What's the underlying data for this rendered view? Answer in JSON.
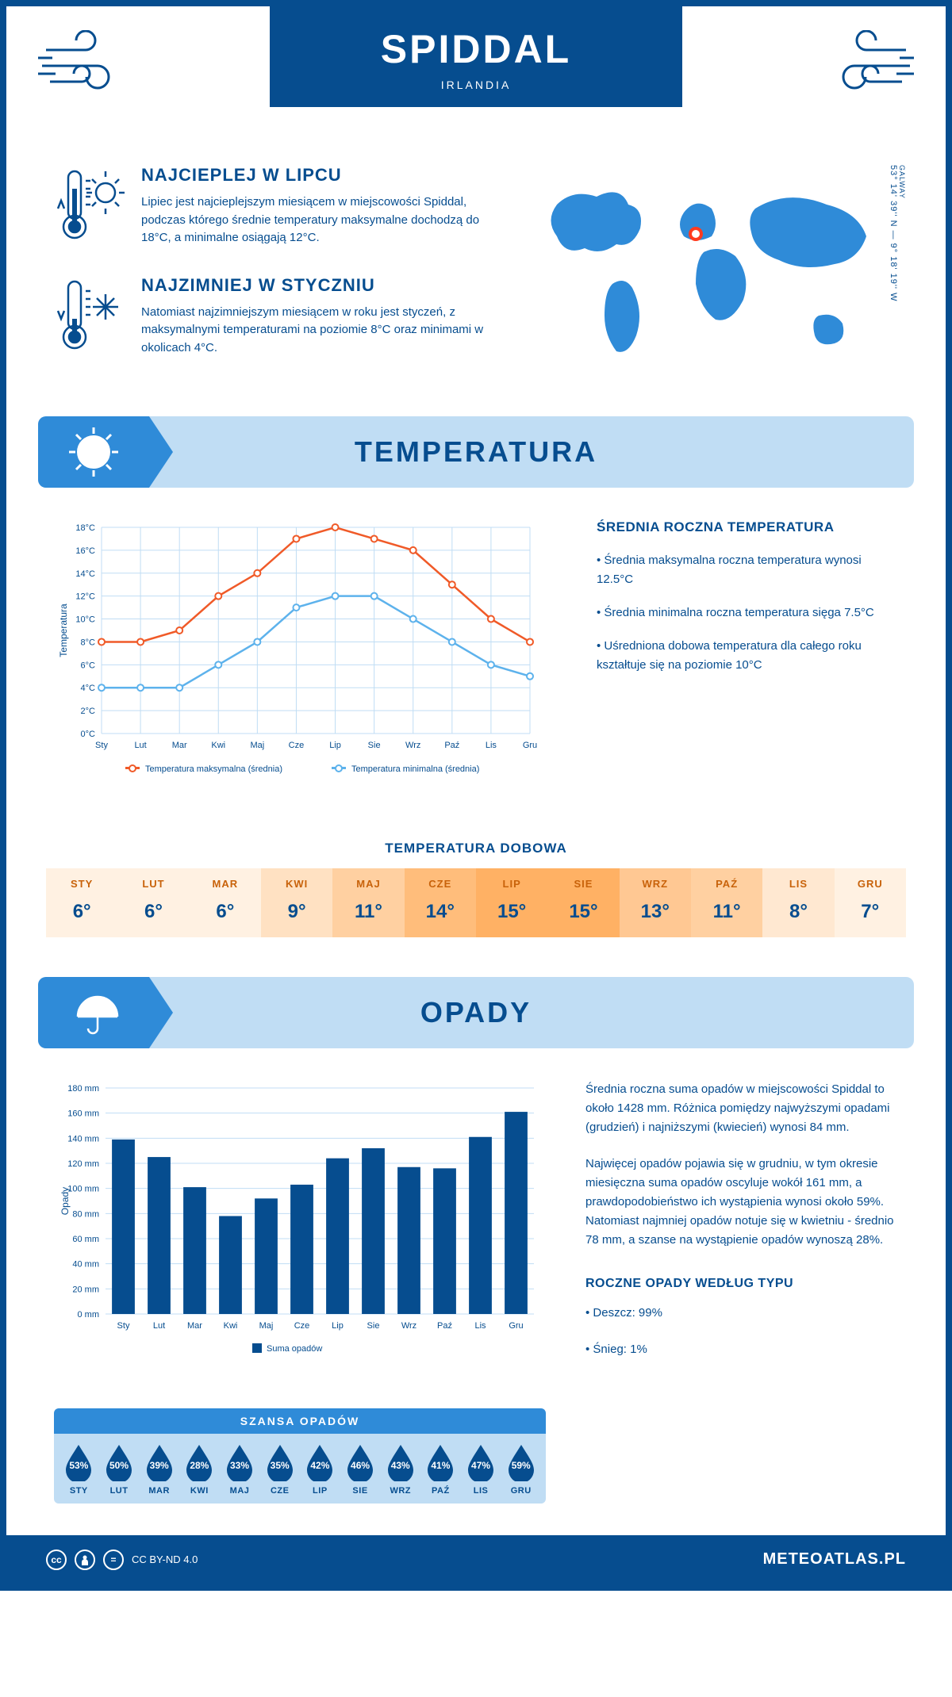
{
  "header": {
    "city": "SPIDDAL",
    "country": "IRLANDIA",
    "coords_line": "53° 14' 39'' N — 9° 18' 19'' W",
    "region": "GALWAY"
  },
  "map": {
    "marker_left_pct": 45,
    "marker_top_pct": 28
  },
  "intro": {
    "warm": {
      "title": "NAJCIEPLEJ W LIPCU",
      "text": "Lipiec jest najcieplejszym miesiącem w miejscowości Spiddal, podczas którego średnie temperatury maksymalne dochodzą do 18°C, a minimalne osiągają 12°C."
    },
    "cold": {
      "title": "NAJZIMNIEJ W STYCZNIU",
      "text": "Natomiast najzimniejszym miesiącem w roku jest styczeń, z maksymalnymi temperaturami na poziomie 8°C oraz minimami w okolicach 4°C."
    }
  },
  "sections": {
    "temperature_title": "TEMPERATURA",
    "precip_title": "OPADY"
  },
  "temp_chart": {
    "type": "line",
    "months": [
      "Sty",
      "Lut",
      "Mar",
      "Kwi",
      "Maj",
      "Cze",
      "Lip",
      "Sie",
      "Wrz",
      "Paź",
      "Lis",
      "Gru"
    ],
    "max_series": [
      8,
      8,
      9,
      12,
      14,
      17,
      18,
      17,
      16,
      13,
      10,
      8
    ],
    "min_series": [
      4,
      4,
      4,
      6,
      8,
      11,
      12,
      12,
      10,
      8,
      6,
      5
    ],
    "max_color": "#f05a28",
    "min_color": "#5db2ec",
    "grid_color": "#c0ddf4",
    "ylim": [
      0,
      18
    ],
    "ytick_step": 2,
    "ylabel": "Temperatura",
    "legend_max": "Temperatura maksymalna (średnia)",
    "legend_min": "Temperatura minimalna (średnia)"
  },
  "temp_side": {
    "title": "ŚREDNIA ROCZNA TEMPERATURA",
    "items": [
      "• Średnia maksymalna roczna temperatura wynosi 12.5°C",
      "• Średnia minimalna roczna temperatura sięga 7.5°C",
      "• Uśredniona dobowa temperatura dla całego roku kształtuje się na poziomie 10°C"
    ]
  },
  "daily": {
    "title": "TEMPERATURA DOBOWA",
    "months": [
      "STY",
      "LUT",
      "MAR",
      "KWI",
      "MAJ",
      "CZE",
      "LIP",
      "SIE",
      "WRZ",
      "PAŹ",
      "LIS",
      "GRU"
    ],
    "values": [
      "6°",
      "6°",
      "6°",
      "9°",
      "11°",
      "14°",
      "15°",
      "15°",
      "13°",
      "11°",
      "8°",
      "7°"
    ],
    "colors": [
      "#fff1e2",
      "#fff1e2",
      "#fff1e2",
      "#ffe1c2",
      "#ffd0a1",
      "#ffbd7b",
      "#ffb164",
      "#ffb164",
      "#ffc893",
      "#ffd0a1",
      "#ffe8d1",
      "#fff1e2"
    ]
  },
  "precip_chart": {
    "type": "bar",
    "months": [
      "Sty",
      "Lut",
      "Mar",
      "Kwi",
      "Maj",
      "Cze",
      "Lip",
      "Sie",
      "Wrz",
      "Paź",
      "Lis",
      "Gru"
    ],
    "values": [
      139,
      125,
      101,
      78,
      92,
      103,
      124,
      132,
      117,
      116,
      141,
      161
    ],
    "bar_color": "#064d8f",
    "grid_color": "#c0ddf4",
    "ylim": [
      0,
      180
    ],
    "ytick_step": 20,
    "ylabel": "Opady",
    "legend": "Suma opadów"
  },
  "precip_side": {
    "p1": "Średnia roczna suma opadów w miejscowości Spiddal to około 1428 mm. Różnica pomiędzy najwyższymi opadami (grudzień) i najniższymi (kwiecień) wynosi 84 mm.",
    "p2": "Najwięcej opadów pojawia się w grudniu, w tym okresie miesięczna suma opadów oscyluje wokół 161 mm, a prawdopodobieństwo ich wystąpienia wynosi około 59%. Natomiast najmniej opadów notuje się w kwietniu - średnio 78 mm, a szanse na wystąpienie opadów wynoszą 28%.",
    "type_title": "ROCZNE OPADY WEDŁUG TYPU",
    "rain": "• Deszcz: 99%",
    "snow": "• Śnieg: 1%"
  },
  "chance": {
    "title": "SZANSA OPADÓW",
    "months": [
      "STY",
      "LUT",
      "MAR",
      "KWI",
      "MAJ",
      "CZE",
      "LIP",
      "SIE",
      "WRZ",
      "PAŹ",
      "LIS",
      "GRU"
    ],
    "values": [
      "53%",
      "50%",
      "39%",
      "28%",
      "33%",
      "35%",
      "42%",
      "46%",
      "43%",
      "41%",
      "47%",
      "59%"
    ],
    "drop_color": "#064d8f"
  },
  "footer": {
    "license": "CC BY-ND 4.0",
    "site": "METEOATLAS.PL"
  }
}
